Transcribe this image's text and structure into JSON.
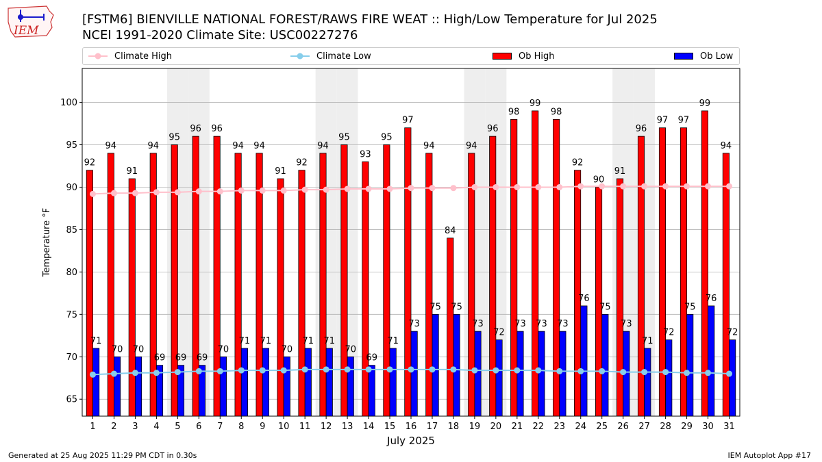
{
  "header": {
    "title_line1": "[FSTM6] BIENVILLE NATIONAL FOREST/RAWS FIRE WEAT :: High/Low Temperature for Jul 2025",
    "title_line2": "NCEI 1991-2020 Climate Site: USC00227276",
    "logo_text": "IEM"
  },
  "footer": {
    "generated": "Generated at 25 Aug 2025 11:29 PM CDT in 0.30s",
    "app": "IEM Autoplot App #17"
  },
  "colors": {
    "ob_high": "#ff0000",
    "ob_low": "#0000ff",
    "climate_high": "#ffc0cb",
    "climate_low": "#87ceeb",
    "weekend_shade": "#eeeeee",
    "grid": "#b0b0b0"
  },
  "chart_data": {
    "type": "bar",
    "xlabel": "July 2025",
    "ylabel": "Temperature °F",
    "ylim": [
      63,
      104
    ],
    "yticks": [
      65,
      70,
      75,
      80,
      85,
      90,
      95,
      100
    ],
    "grid": "horizontal",
    "legend_position": "top",
    "categories": [
      1,
      2,
      3,
      4,
      5,
      6,
      7,
      8,
      9,
      10,
      11,
      12,
      13,
      14,
      15,
      16,
      17,
      18,
      19,
      20,
      21,
      22,
      23,
      24,
      25,
      26,
      27,
      28,
      29,
      30,
      31
    ],
    "shaded_days": [
      5,
      6,
      12,
      13,
      19,
      20,
      26,
      27
    ],
    "series": [
      {
        "name": "Ob High",
        "kind": "bar",
        "values": [
          92,
          94,
          91,
          94,
          95,
          96,
          96,
          94,
          94,
          91,
          92,
          94,
          95,
          93,
          95,
          97,
          94,
          84,
          94,
          96,
          98,
          99,
          98,
          92,
          90,
          91,
          96,
          97,
          97,
          99,
          94
        ]
      },
      {
        "name": "Ob Low",
        "kind": "bar",
        "values": [
          71,
          70,
          70,
          69,
          69,
          69,
          70,
          71,
          71,
          70,
          71,
          71,
          70,
          69,
          71,
          73,
          75,
          75,
          73,
          72,
          73,
          73,
          73,
          76,
          75,
          73,
          71,
          72,
          75,
          76,
          72
        ]
      },
      {
        "name": "Climate High",
        "kind": "line",
        "values": [
          89.2,
          89.3,
          89.3,
          89.4,
          89.4,
          89.5,
          89.5,
          89.6,
          89.6,
          89.6,
          89.7,
          89.7,
          89.8,
          89.8,
          89.8,
          89.9,
          89.9,
          89.9,
          90.0,
          90.0,
          90.0,
          90.0,
          90.0,
          90.1,
          90.1,
          90.1,
          90.1,
          90.1,
          90.1,
          90.1,
          90.1
        ]
      },
      {
        "name": "Climate Low",
        "kind": "line",
        "values": [
          67.9,
          68.0,
          68.1,
          68.1,
          68.2,
          68.3,
          68.3,
          68.4,
          68.4,
          68.4,
          68.5,
          68.5,
          68.5,
          68.5,
          68.5,
          68.5,
          68.5,
          68.5,
          68.4,
          68.4,
          68.4,
          68.4,
          68.3,
          68.3,
          68.3,
          68.2,
          68.2,
          68.2,
          68.1,
          68.1,
          68.0
        ]
      }
    ]
  }
}
